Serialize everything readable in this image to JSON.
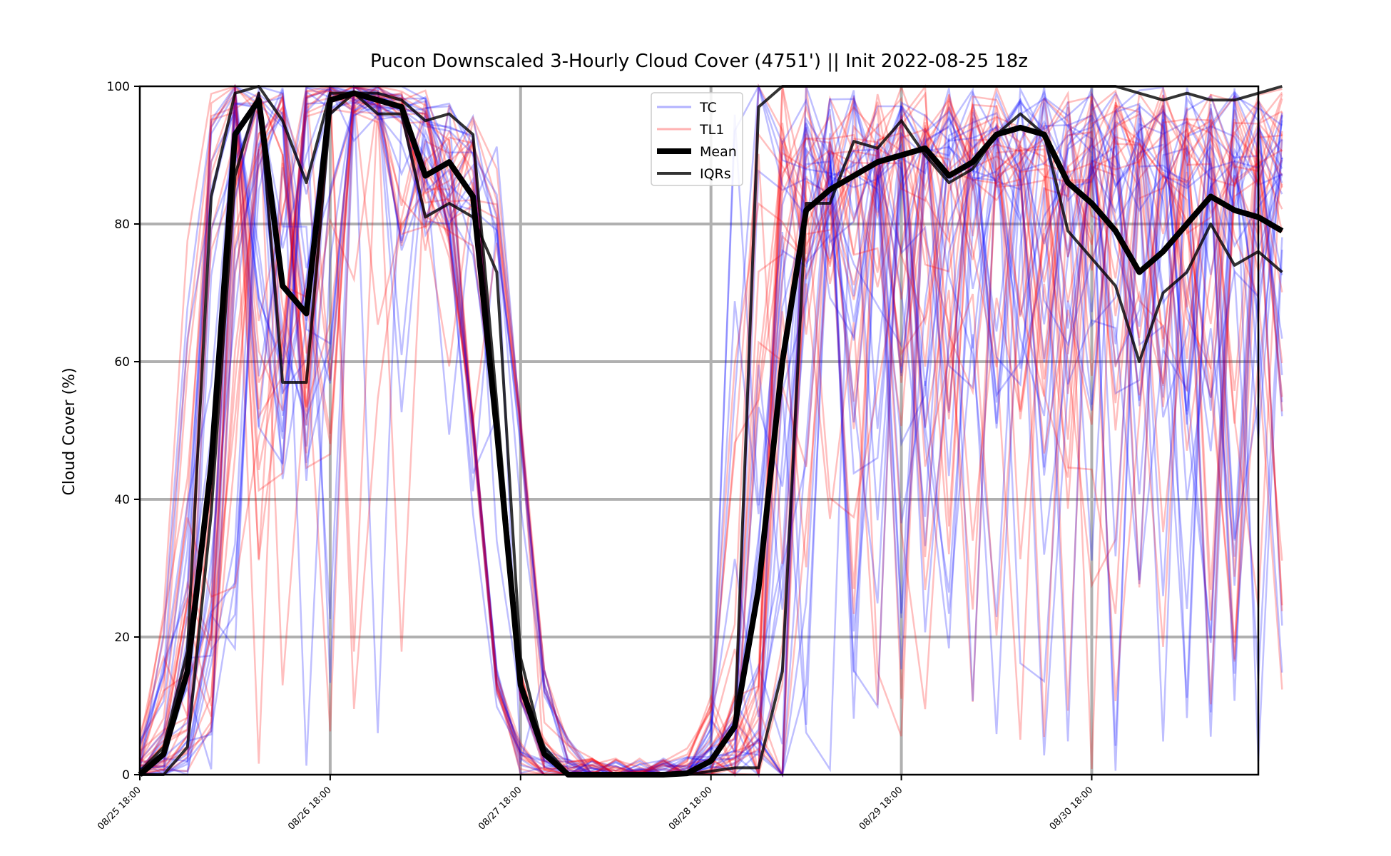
{
  "chart_data": {
    "type": "line",
    "title": "Pucon Downscaled 3-Hourly Cloud Cover (4751') || Init 2022-08-25 18z",
    "xlabel": "",
    "ylabel": "Cloud Cover (%)",
    "ylim": [
      0,
      100
    ],
    "y_ticks": [
      0,
      20,
      40,
      60,
      80,
      100
    ],
    "x_unit": "3-hour steps since init",
    "xlim": [
      0,
      47
    ],
    "x_ticks": [
      0,
      8,
      16,
      24,
      32,
      40
    ],
    "x_tick_labels": [
      "08/25 18:00",
      "08/26 18:00",
      "08/27 18:00",
      "08/28 18:00",
      "08/29 18:00",
      "08/30 18:00"
    ],
    "grid": true,
    "legend_position": "top-center",
    "legend": [
      {
        "label": "TC",
        "color": "#0000ff",
        "style": "thin-translucent"
      },
      {
        "label": "TL1",
        "color": "#ff0000",
        "style": "thin-translucent"
      },
      {
        "label": "Mean",
        "color": "#000000",
        "style": "thick"
      },
      {
        "label": "IQRs",
        "color": "#000000",
        "style": "medium"
      }
    ],
    "mean": {
      "name": "Mean",
      "values": [
        0,
        3,
        15,
        45,
        93,
        98,
        71,
        67,
        98,
        99,
        98,
        97,
        87,
        89,
        84,
        50,
        13,
        3,
        0,
        0,
        0,
        0,
        0,
        0.2,
        2,
        7,
        27,
        60,
        82,
        85,
        87,
        89,
        90,
        91,
        87,
        89,
        93,
        94,
        93,
        86,
        83,
        79,
        73,
        76,
        80,
        84,
        82,
        81,
        79
      ]
    },
    "iqr_upper": {
      "name": "IQRs",
      "values": [
        0.5,
        4,
        18,
        84,
        99,
        100,
        95,
        86,
        99,
        99,
        99,
        98,
        95,
        96,
        93,
        54,
        13,
        4,
        0.2,
        0,
        0,
        0,
        0,
        0.2,
        2,
        7,
        97,
        100,
        100,
        100,
        100,
        100,
        100,
        100,
        100,
        100,
        100,
        100,
        100,
        100,
        100,
        100,
        99,
        98,
        99,
        98,
        98,
        99,
        100
      ]
    },
    "iqr_lower": {
      "name": "IQRs",
      "values": [
        0,
        0,
        4,
        38,
        87,
        99,
        57,
        57,
        96,
        99,
        96,
        96,
        81,
        83,
        81,
        73,
        17,
        3,
        0,
        0,
        0,
        0,
        0,
        0,
        0.5,
        1,
        1,
        15,
        83,
        83,
        92,
        91,
        95,
        90,
        86,
        88,
        93,
        96,
        93,
        79,
        75,
        71,
        60,
        70,
        73,
        80,
        74,
        76,
        73
      ]
    },
    "ensemble": {
      "TC_members": 25,
      "TL1_members": 25,
      "TC_color": "#0000ff",
      "TL1_color": "#ff0000"
    }
  }
}
